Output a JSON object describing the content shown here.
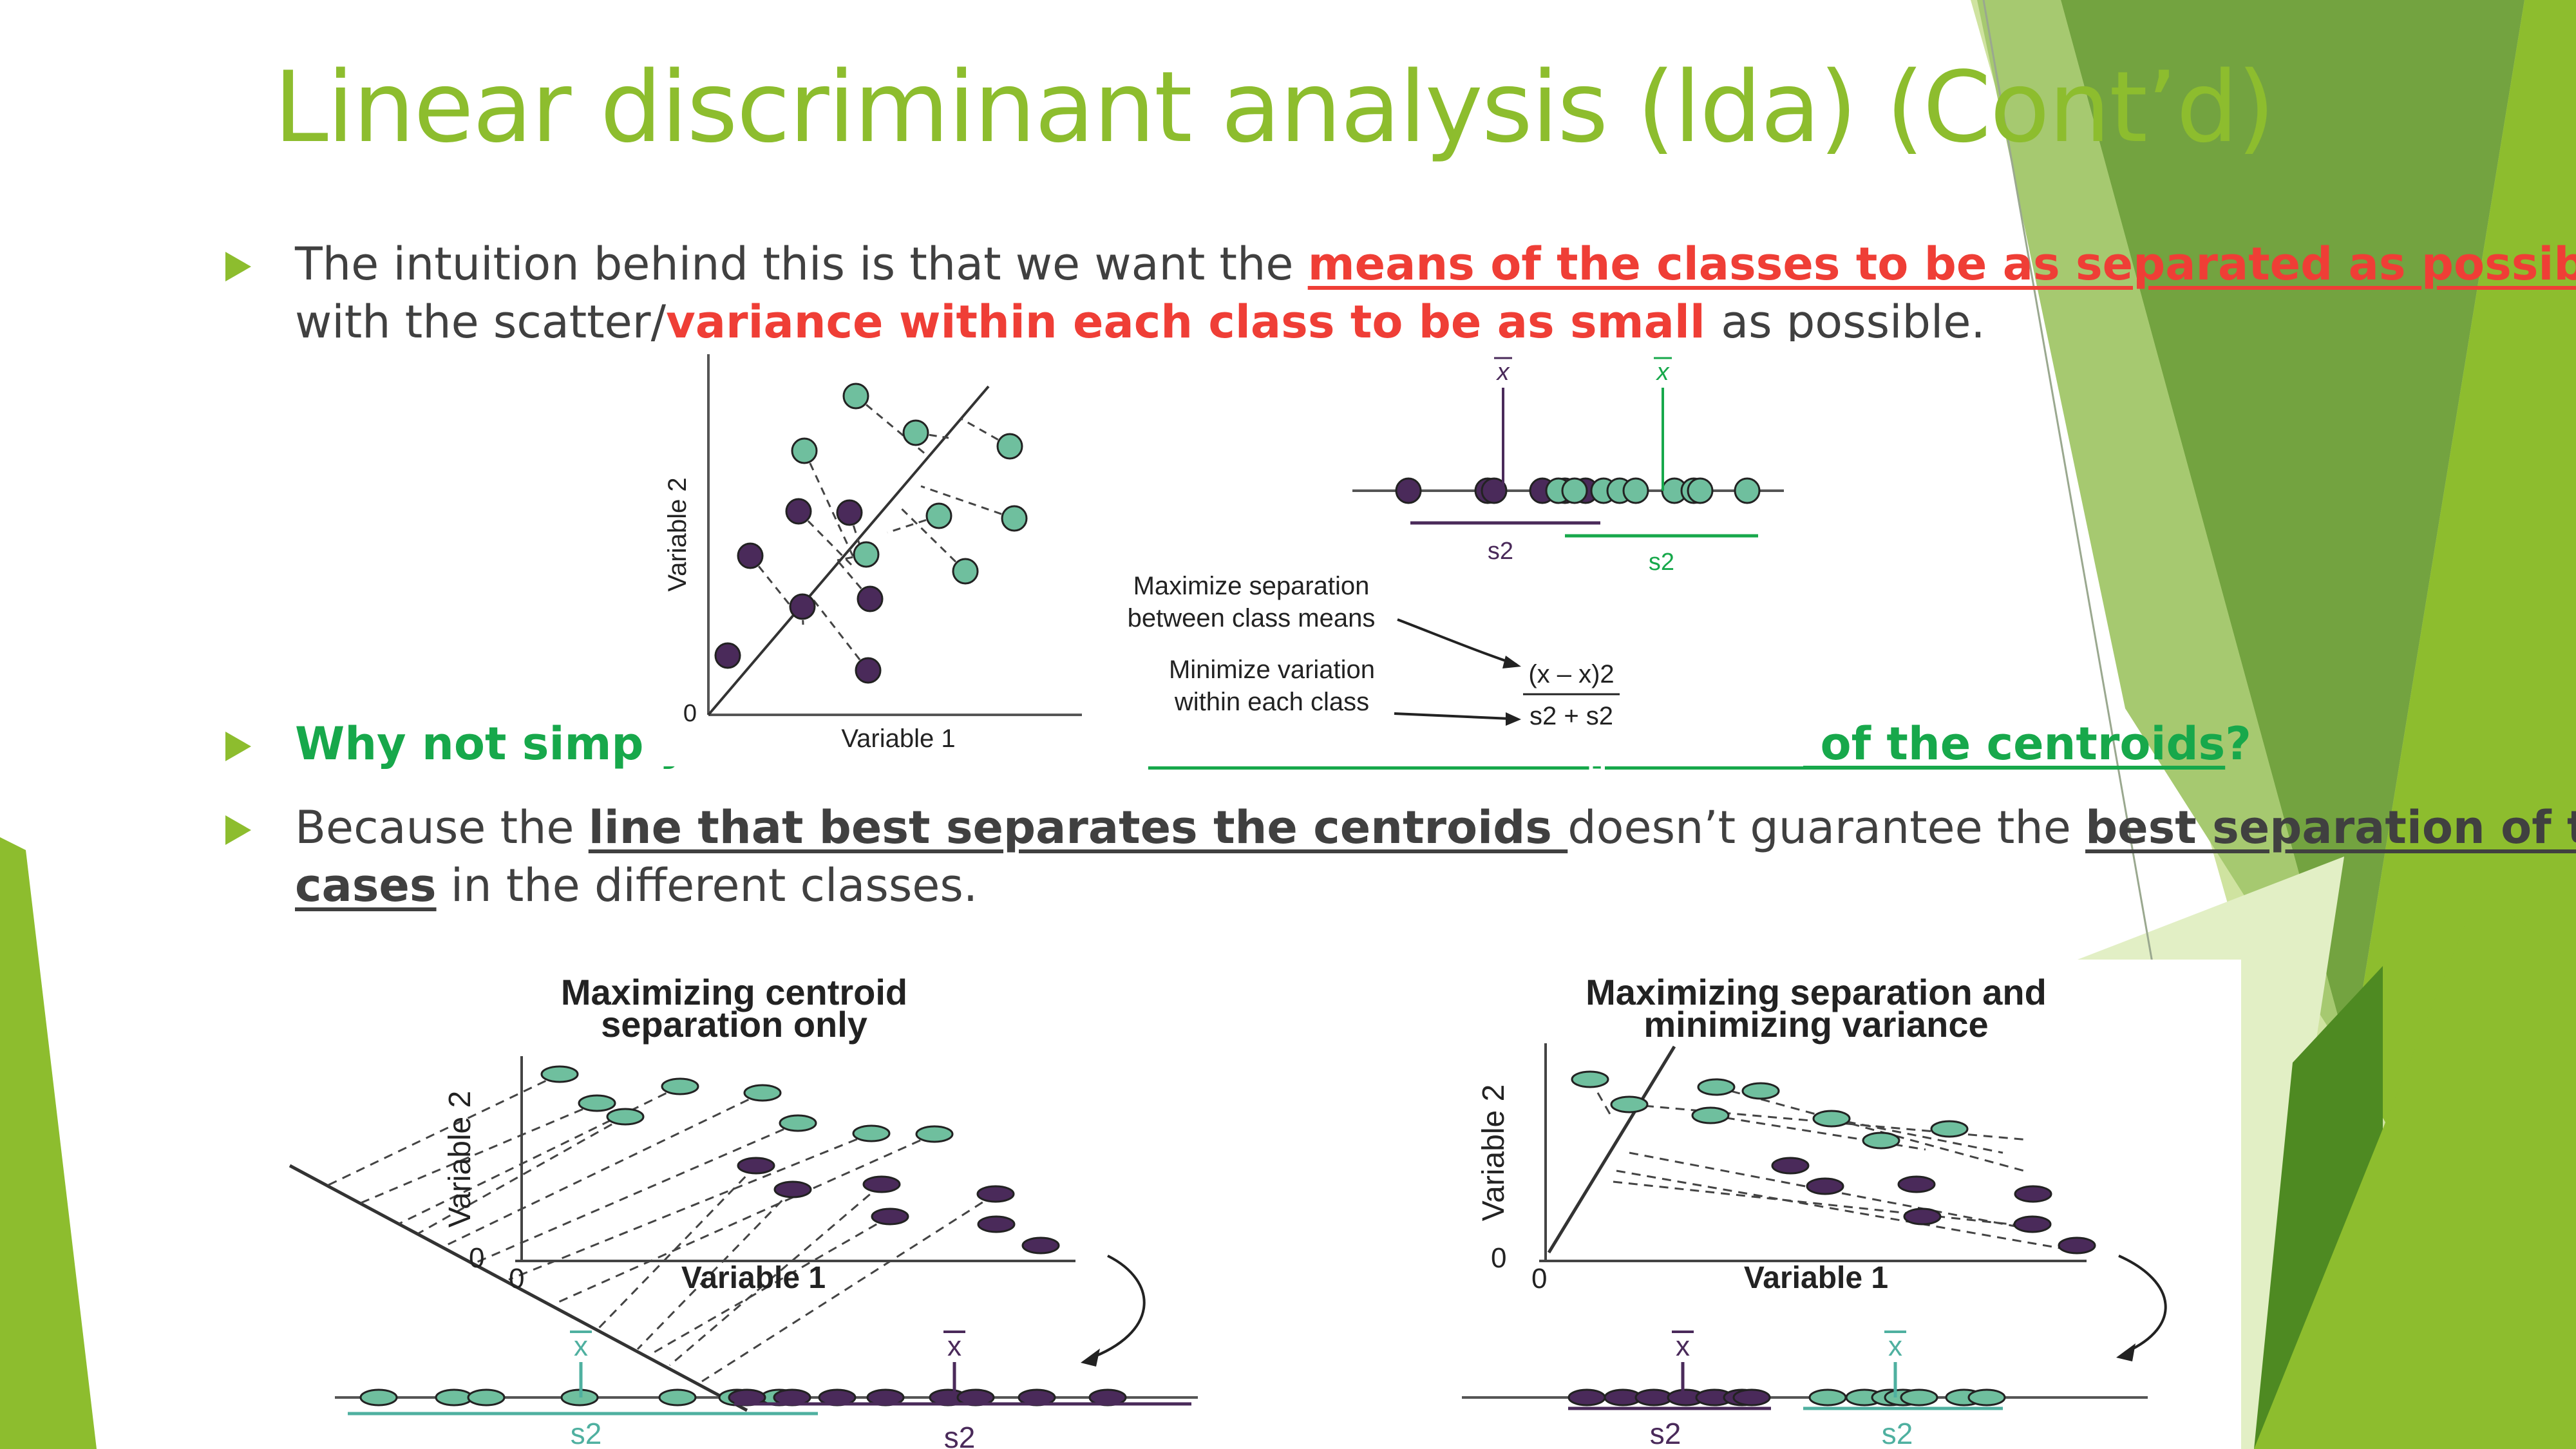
{
  "slide": {
    "title": "Linear discriminant analysis (lda) (Cont’d)",
    "bullet1": {
      "prefix": "The intuition behind this is that we want the ",
      "highlight1": "means of the classes to be as separated as possible",
      "middle": ", with the scatter/",
      "highlight2": "variance within each class to be as small ",
      "suffix": "as possible."
    },
    "bullet2": {
      "prefix": "Why not simply find the line that ",
      "highlight": "maximizes the separation of the centroids",
      "suffix": "?"
    },
    "bullet3": {
      "prefix": "Because the ",
      "highlight1": "line that best separates the centroids ",
      "middle": "doesn’t guarantee the ",
      "highlight2": "best separation of the cases",
      "suffix": " in the different classes."
    }
  },
  "top_figure": {
    "ylabel": "Variable 2",
    "xlabel": "Variable 1",
    "zero": "0",
    "xbar": "x",
    "s2": "s2",
    "annotation1_line1": "Maximize separation",
    "annotation1_line2": "between class means",
    "annotation2_line1": "Minimize variation",
    "annotation2_line2": "within each class",
    "formula_num": "(x – x)2",
    "formula_den": "s2 + s2"
  },
  "left_figure": {
    "title_line1": "Maximizing centroid",
    "title_line2": "separation only",
    "ylabel": "Variable 2",
    "xlabel": "Variable 1",
    "zero": "0",
    "xbar": "x",
    "s2": "s2"
  },
  "right_figure": {
    "title_line1": "Maximizing separation and",
    "title_line2": "minimizing variance",
    "ylabel": "Variable 2",
    "xlabel": "Variable 1",
    "zero": "0",
    "xbar": "x",
    "s2": "s2"
  },
  "colors": {
    "accent_green": "#8dbd2e",
    "highlight_red": "#ef3e36",
    "highlight_green": "#17a84b",
    "teal_point": "#6fbf9e",
    "purple_point": "#4a2a5a",
    "body_text": "#404040"
  }
}
